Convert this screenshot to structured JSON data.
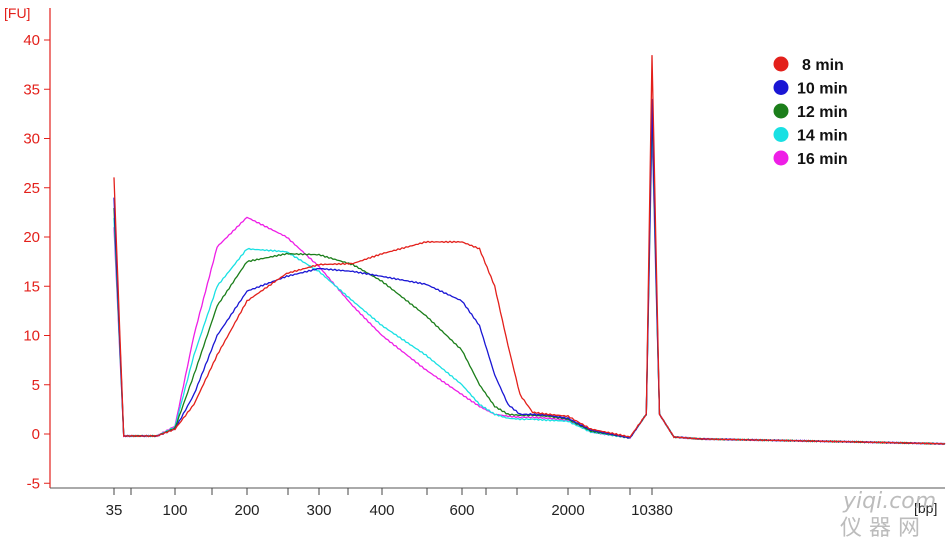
{
  "chart_data": {
    "type": "line",
    "ylabel": "[FU]",
    "xlabel": "[bp]",
    "ylim": [
      -5,
      42
    ],
    "yticks": [
      40,
      35,
      30,
      25,
      20,
      15,
      10,
      5,
      0,
      -5
    ],
    "x_tick_labels": [
      "35",
      "100",
      "200",
      "300",
      "400",
      "600",
      "2000",
      "10380"
    ],
    "grid": false,
    "legend_position": "top-right",
    "axis_color": "#e3201b",
    "series": [
      {
        "name": "8 min",
        "color": "#e3201b",
        "x": [
          40,
          35,
          50,
          70,
          100,
          120,
          150,
          200,
          250,
          300,
          350,
          400,
          500,
          600,
          700,
          800,
          900,
          1000,
          1200,
          1500,
          2000,
          3000,
          6000,
          9000,
          10380,
          11500,
          14000,
          20000,
          40000,
          60000
        ],
        "y": [
          -0.2,
          26,
          -0.2,
          -0.2,
          0.5,
          3,
          8,
          13.5,
          16.3,
          17.2,
          17.3,
          18.3,
          19.5,
          19.5,
          18.8,
          15,
          9,
          4,
          2.2,
          2,
          1.8,
          0.5,
          -0.3,
          2,
          38.5,
          2,
          -0.3,
          -0.5,
          -0.8,
          -1
        ]
      },
      {
        "name": "10 min",
        "color": "#1a16d4",
        "x": [
          40,
          35,
          50,
          70,
          100,
          120,
          150,
          200,
          250,
          300,
          350,
          400,
          500,
          600,
          700,
          800,
          900,
          1000,
          1200,
          1500,
          2000,
          3000,
          6000,
          9000,
          10380,
          11500,
          14000,
          20000,
          40000,
          60000
        ],
        "y": [
          -0.2,
          24,
          -0.2,
          -0.2,
          0.5,
          4,
          10,
          14.5,
          16,
          16.8,
          16.5,
          16,
          15.2,
          13.5,
          11,
          6,
          3,
          2,
          2,
          1.9,
          1.6,
          0.4,
          -0.4,
          2,
          34,
          2,
          -0.3,
          -0.5,
          -0.8,
          -1
        ]
      },
      {
        "name": "12 min",
        "color": "#1b7e1a",
        "x": [
          40,
          35,
          50,
          70,
          100,
          120,
          150,
          200,
          250,
          300,
          350,
          400,
          500,
          600,
          700,
          800,
          900,
          1000,
          1200,
          1500,
          2000,
          3000,
          6000,
          9000,
          10380,
          11500,
          14000,
          20000,
          40000,
          60000
        ],
        "y": [
          -0.2,
          23,
          -0.2,
          -0.2,
          0.6,
          6,
          13,
          17.5,
          18.3,
          18.2,
          17.2,
          15.5,
          12,
          8.5,
          5,
          2.8,
          2,
          1.9,
          1.9,
          1.8,
          1.5,
          0.3,
          -0.4,
          2,
          33,
          2,
          -0.3,
          -0.5,
          -0.8,
          -1
        ]
      },
      {
        "name": "14 min",
        "color": "#19e0e3",
        "x": [
          40,
          35,
          50,
          70,
          100,
          120,
          150,
          200,
          250,
          300,
          350,
          400,
          500,
          600,
          700,
          800,
          900,
          1000,
          1200,
          1500,
          2000,
          3000,
          6000,
          9000,
          10380,
          11500,
          14000,
          20000,
          40000,
          60000
        ],
        "y": [
          -0.2,
          22,
          -0.2,
          -0.2,
          0.7,
          8,
          15,
          18.8,
          18.5,
          16.5,
          13.5,
          11,
          8,
          5,
          3,
          2,
          1.6,
          1.5,
          1.5,
          1.4,
          1.3,
          0.2,
          -0.4,
          2,
          32,
          2,
          -0.3,
          -0.5,
          -0.8,
          -1
        ]
      },
      {
        "name": "16 min",
        "color": "#ee1ee6",
        "x": [
          40,
          35,
          50,
          70,
          100,
          120,
          150,
          200,
          250,
          300,
          350,
          400,
          500,
          600,
          700,
          800,
          900,
          1000,
          1200,
          1500,
          2000,
          3000,
          6000,
          9000,
          10380,
          11500,
          14000,
          20000,
          40000,
          60000
        ],
        "y": [
          -0.2,
          21,
          -0.2,
          -0.2,
          0.8,
          10,
          19,
          22,
          20,
          17,
          13,
          10,
          6.5,
          4,
          2.8,
          2,
          1.8,
          1.7,
          1.7,
          1.6,
          1.4,
          0.2,
          -0.4,
          2,
          31,
          2,
          -0.3,
          -0.5,
          -0.8,
          -1
        ]
      }
    ]
  },
  "watermark": {
    "line1": "yiqi.com",
    "line2": "仪 器 网"
  }
}
